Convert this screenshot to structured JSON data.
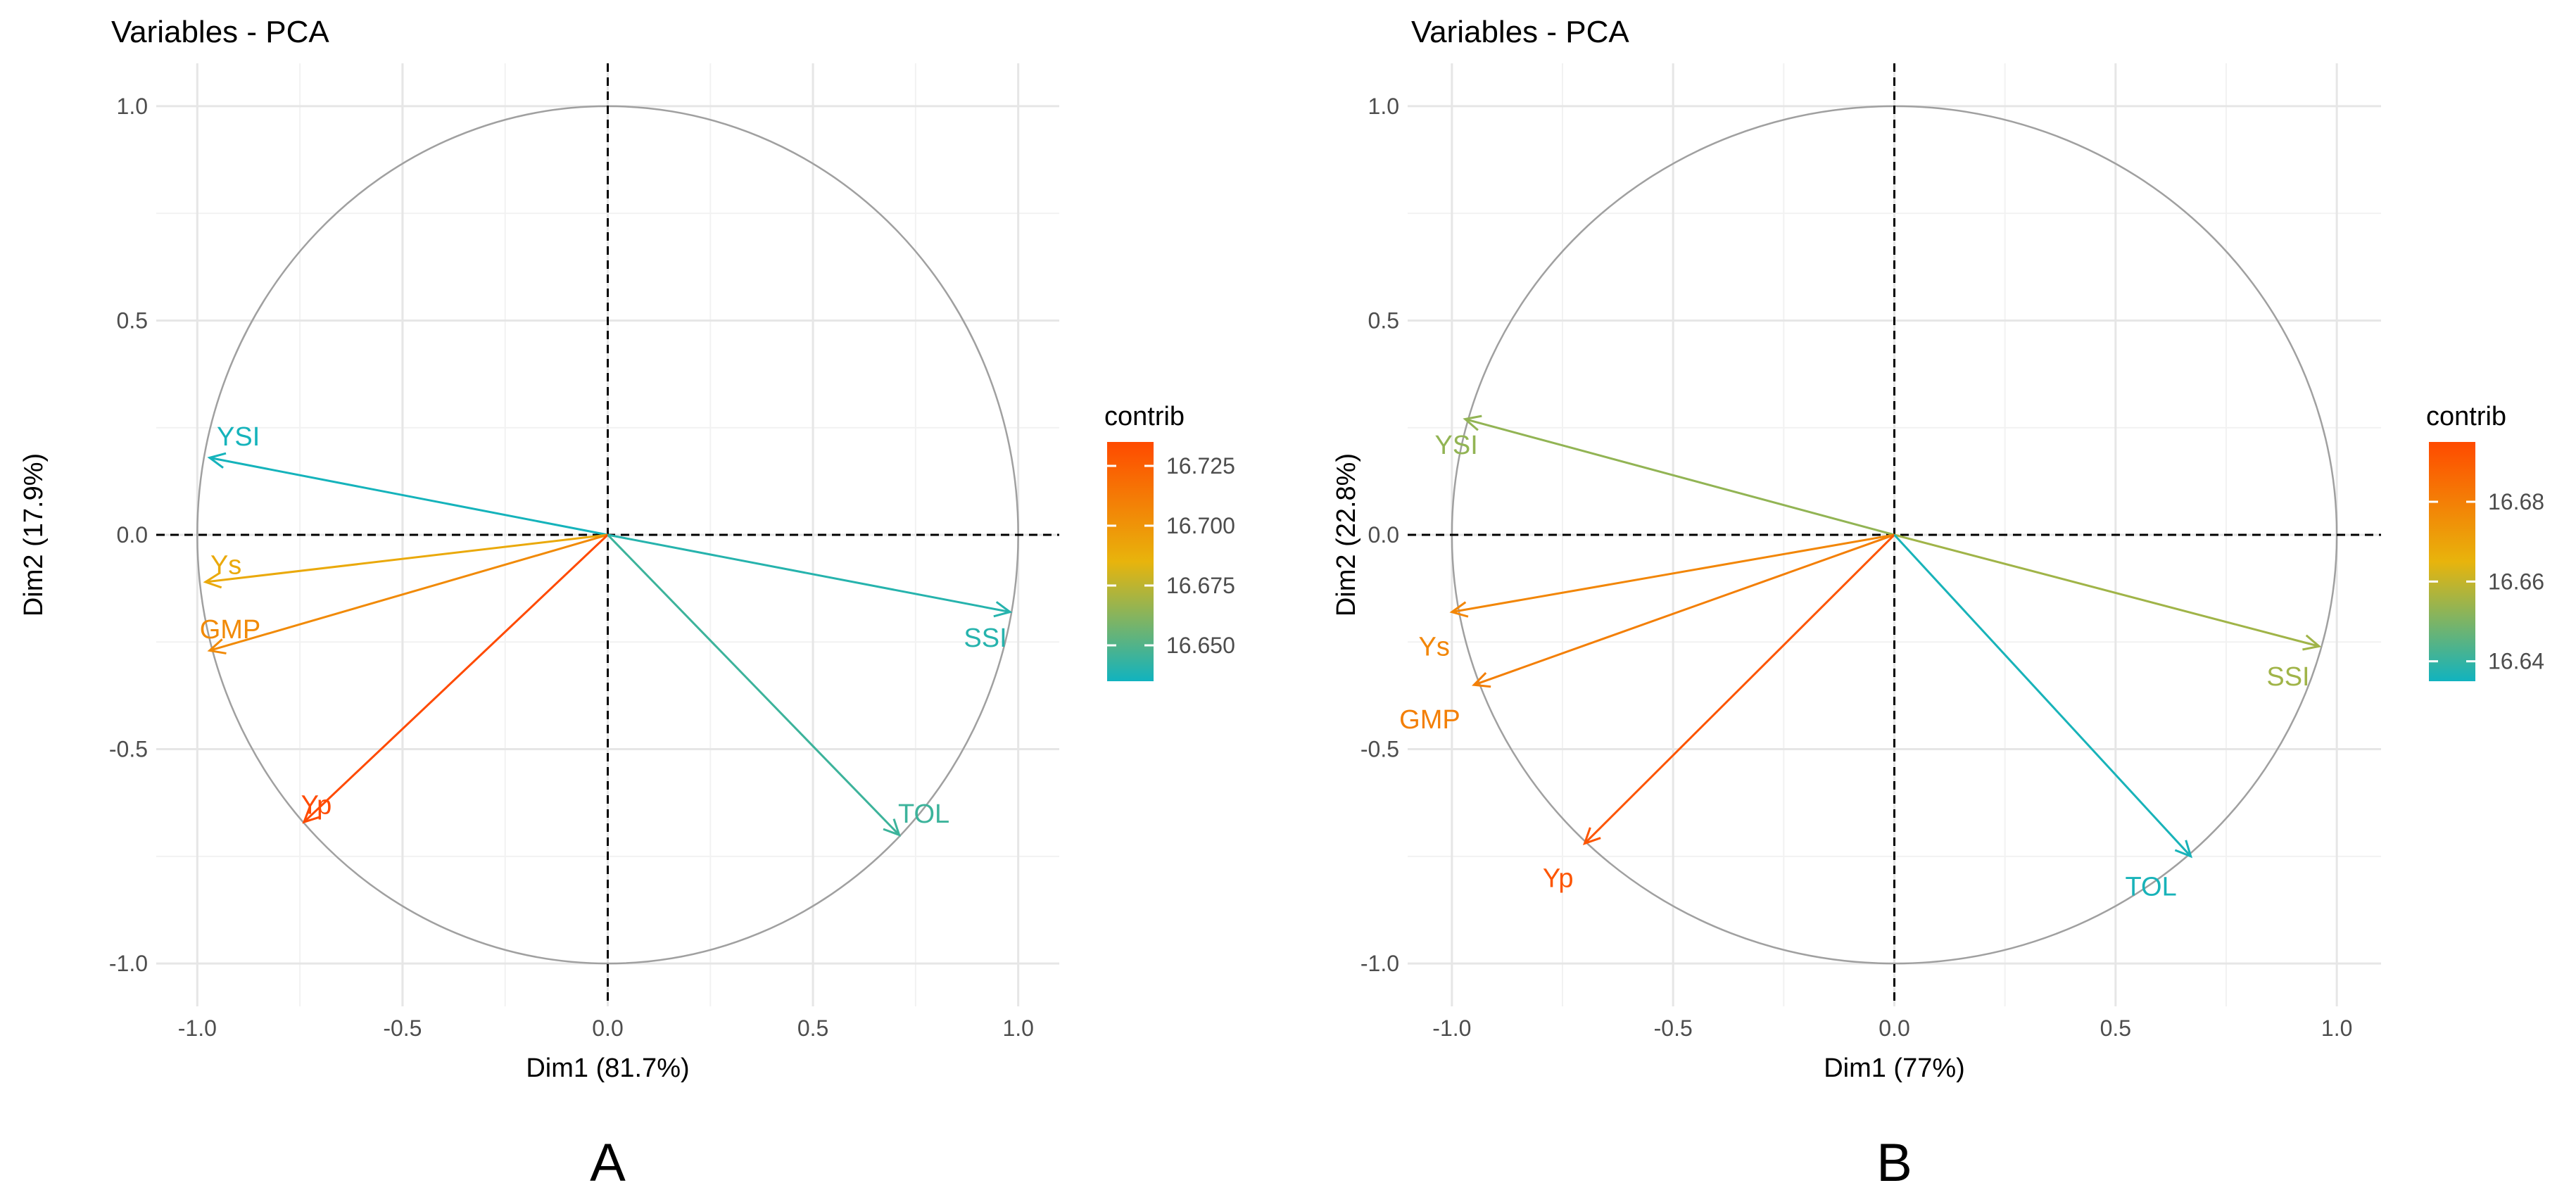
{
  "colors": {
    "low": "#11B3BF",
    "mid": "#E8B40C",
    "high": "#FF4A00",
    "circle": "#A0A0A0",
    "grid_major": "#E6E6E6",
    "grid_minor": "#F2F2F2",
    "axis_text": "#4D4D4D"
  },
  "chart_data": [
    {
      "type": "scatter",
      "subtype": "pca-variable-correlation-circle",
      "panel_label": "A",
      "title": "Variables - PCA",
      "xlabel": "Dim1 (81.7%)",
      "ylabel": "Dim2 (17.9%)",
      "xlim": [
        -1.1,
        1.1
      ],
      "ylim": [
        -1.1,
        1.1
      ],
      "x_ticks": [
        -1.0,
        -0.5,
        0.0,
        0.5,
        1.0
      ],
      "y_ticks": [
        -1.0,
        -0.5,
        0.0,
        0.5,
        1.0
      ],
      "x_tick_labels": [
        "-1.0",
        "-0.5",
        "0.0",
        "0.5",
        "1.0"
      ],
      "y_tick_labels": [
        "-1.0",
        "-0.5",
        "0.0",
        "0.5",
        "1.0"
      ],
      "grid": true,
      "legend": {
        "title": "contrib",
        "placement": "right",
        "range": [
          16.635,
          16.735
        ],
        "ticks": [
          16.65,
          16.675,
          16.7,
          16.725
        ],
        "tick_labels": [
          "16.650",
          "16.675",
          "16.700",
          "16.725"
        ]
      },
      "variables": [
        {
          "name": "YSI",
          "x": -0.97,
          "y": 0.18,
          "contrib": 16.636,
          "label_dx": 0.07,
          "label_dy": 0.05
        },
        {
          "name": "Ys",
          "x": -0.98,
          "y": -0.11,
          "contrib": 16.69,
          "label_dx": 0.05,
          "label_dy": 0.04
        },
        {
          "name": "GMP",
          "x": -0.97,
          "y": -0.27,
          "contrib": 16.705,
          "label_dx": 0.05,
          "label_dy": 0.05
        },
        {
          "name": "Yp",
          "x": -0.74,
          "y": -0.67,
          "contrib": 16.735,
          "label_dx": 0.03,
          "label_dy": 0.04
        },
        {
          "name": "SSI",
          "x": 0.98,
          "y": -0.18,
          "contrib": 16.64,
          "label_dx": -0.06,
          "label_dy": -0.06
        },
        {
          "name": "TOL",
          "x": 0.71,
          "y": -0.7,
          "contrib": 16.645,
          "label_dx": 0.06,
          "label_dy": 0.05
        }
      ]
    },
    {
      "type": "scatter",
      "subtype": "pca-variable-correlation-circle",
      "panel_label": "B",
      "title": "Variables - PCA",
      "xlabel": "Dim1 (77%)",
      "ylabel": "Dim2 (22.8%)",
      "xlim": [
        -1.1,
        1.1
      ],
      "ylim": [
        -1.1,
        1.1
      ],
      "x_ticks": [
        -1.0,
        -0.5,
        0.0,
        0.5,
        1.0
      ],
      "y_ticks": [
        -1.0,
        -0.5,
        0.0,
        0.5,
        1.0
      ],
      "x_tick_labels": [
        "-1.0",
        "-0.5",
        "0.0",
        "0.5",
        "1.0"
      ],
      "y_tick_labels": [
        "-1.0",
        "-0.5",
        "0.0",
        "0.5",
        "1.0"
      ],
      "grid": true,
      "legend": {
        "title": "contrib",
        "placement": "right",
        "range": [
          16.635,
          16.695
        ],
        "ticks": [
          16.64,
          16.66,
          16.68
        ],
        "tick_labels": [
          "16.64",
          "16.66",
          "16.68"
        ]
      },
      "variables": [
        {
          "name": "YSI",
          "x": -0.97,
          "y": 0.27,
          "contrib": 16.653,
          "label_dx": -0.02,
          "label_dy": -0.06
        },
        {
          "name": "Ys",
          "x": -1.0,
          "y": -0.18,
          "contrib": 16.678,
          "label_dx": -0.04,
          "label_dy": -0.08
        },
        {
          "name": "GMP",
          "x": -0.95,
          "y": -0.35,
          "contrib": 16.68,
          "label_dx": -0.1,
          "label_dy": -0.08
        },
        {
          "name": "Yp",
          "x": -0.7,
          "y": -0.72,
          "contrib": 16.692,
          "label_dx": -0.06,
          "label_dy": -0.08
        },
        {
          "name": "SSI",
          "x": 0.96,
          "y": -0.26,
          "contrib": 16.655,
          "label_dx": -0.07,
          "label_dy": -0.07
        },
        {
          "name": "TOL",
          "x": 0.67,
          "y": -0.75,
          "contrib": 16.636,
          "label_dx": -0.09,
          "label_dy": -0.07
        }
      ]
    }
  ]
}
